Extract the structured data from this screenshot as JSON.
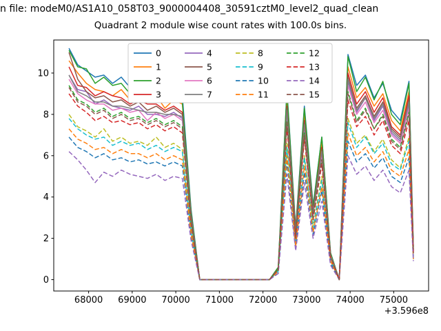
{
  "figure": {
    "suptitle": "n file: modeM0/AS1A10_058T03_9000004408_30591cztM0_level2_quad_clean",
    "title": "Quadrant 2 module wise count rates with 100.0s bins.",
    "x_offset_label": "+3.596e8"
  },
  "chart_data": {
    "type": "line",
    "title": "Quadrant 2 module wise count rates with 100.0s bins.",
    "xlabel": "",
    "ylabel": "",
    "x_axis_offset": "+3.596e8",
    "xlim": [
      67200,
      75800
    ],
    "ylim": [
      -0.55,
      11.6
    ],
    "x_ticks": [
      68000,
      69000,
      70000,
      71000,
      72000,
      73000,
      74000,
      75000
    ],
    "y_ticks": [
      0,
      2,
      4,
      6,
      8,
      10
    ],
    "grid": false,
    "legend_position": "upper center",
    "legend_columns": 4,
    "x": [
      67550,
      67750,
      67950,
      68150,
      68350,
      68550,
      68750,
      68950,
      69150,
      69350,
      69550,
      69750,
      69950,
      70150,
      70350,
      70550,
      70750,
      70950,
      71150,
      71350,
      71550,
      71750,
      71950,
      72150,
      72350,
      72550,
      72750,
      72950,
      73150,
      73350,
      73550,
      73750,
      73950,
      74150,
      74350,
      74550,
      74750,
      74950,
      75150,
      75350,
      75450
    ],
    "series": [
      {
        "name": "0",
        "color": "#1f77b4",
        "linestyle": "solid",
        "values": [
          11.2,
          10.4,
          10.1,
          9.8,
          9.9,
          9.5,
          9.8,
          9.3,
          9.5,
          9.1,
          9.4,
          9.0,
          9.2,
          8.9,
          3.4,
          0,
          0,
          0,
          0,
          0,
          0,
          0,
          0,
          0,
          0.6,
          9.2,
          2.5,
          8.4,
          3.6,
          6.9,
          1.3,
          0,
          10.9,
          9.4,
          9.9,
          8.8,
          9.5,
          8.2,
          7.7,
          9.6,
          1.6
        ]
      },
      {
        "name": "1",
        "color": "#ff7f0e",
        "linestyle": "solid",
        "values": [
          10.6,
          10.0,
          9.5,
          9.2,
          9.1,
          8.9,
          9.2,
          8.7,
          9.1,
          8.6,
          8.9,
          8.3,
          8.7,
          8.5,
          3.2,
          0,
          0,
          0,
          0,
          0,
          0,
          0,
          0,
          0,
          0.5,
          8.7,
          2.3,
          8.0,
          3.4,
          6.6,
          1.2,
          0,
          10.3,
          8.8,
          9.3,
          8.4,
          9.0,
          7.7,
          7.2,
          9.1,
          1.5
        ]
      },
      {
        "name": "2",
        "color": "#2ca02c",
        "linestyle": "solid",
        "values": [
          11.1,
          10.3,
          10.2,
          9.5,
          9.8,
          9.4,
          9.5,
          9.0,
          9.3,
          9.1,
          9.2,
          8.9,
          9.1,
          8.6,
          3.3,
          0,
          0,
          0,
          0,
          0,
          0,
          0,
          0,
          0,
          0.6,
          9.1,
          2.4,
          8.3,
          3.5,
          6.9,
          1.3,
          0,
          10.8,
          9.1,
          9.8,
          8.7,
          9.6,
          8.0,
          7.5,
          9.5,
          1.6
        ]
      },
      {
        "name": "3",
        "color": "#d62728",
        "linestyle": "solid",
        "values": [
          10.3,
          9.4,
          9.3,
          8.9,
          9.1,
          8.9,
          8.8,
          8.5,
          8.7,
          8.5,
          8.5,
          8.2,
          8.4,
          8.1,
          3.1,
          0,
          0,
          0,
          0,
          0,
          0,
          0,
          0,
          0,
          0.5,
          8.4,
          2.3,
          7.7,
          3.3,
          6.4,
          1.2,
          0,
          10.0,
          8.5,
          9.1,
          8.1,
          8.8,
          7.4,
          7.0,
          8.9,
          1.4
        ]
      },
      {
        "name": "4",
        "color": "#9467bd",
        "linestyle": "solid",
        "values": [
          9.9,
          9.2,
          9.1,
          8.5,
          8.7,
          8.4,
          8.3,
          8.2,
          8.4,
          8.0,
          8.0,
          7.9,
          8.1,
          7.8,
          3.0,
          0,
          0,
          0,
          0,
          0,
          0,
          0,
          0,
          0,
          0.5,
          8.1,
          2.2,
          7.4,
          3.2,
          6.1,
          1.1,
          0,
          9.6,
          8.1,
          8.8,
          7.7,
          8.4,
          7.1,
          6.7,
          8.5,
          1.4
        ]
      },
      {
        "name": "5",
        "color": "#8c564b",
        "linestyle": "solid",
        "values": [
          11.0,
          9.7,
          9.1,
          8.8,
          8.9,
          8.6,
          8.7,
          8.4,
          8.6,
          8.2,
          8.4,
          8.1,
          8.3,
          8.0,
          3.0,
          0,
          0,
          0,
          0,
          0,
          0,
          0,
          0,
          0,
          0.5,
          8.3,
          2.2,
          7.6,
          3.2,
          6.3,
          1.2,
          0,
          9.8,
          8.3,
          8.9,
          7.9,
          8.6,
          7.3,
          6.9,
          8.7,
          1.4
        ]
      },
      {
        "name": "6",
        "color": "#e377c2",
        "linestyle": "solid",
        "values": [
          9.7,
          9.0,
          8.7,
          8.5,
          8.5,
          8.2,
          8.3,
          8.1,
          8.2,
          7.7,
          8.1,
          7.8,
          8.0,
          7.7,
          2.9,
          0,
          0,
          0,
          0,
          0,
          0,
          0,
          0,
          0,
          0.5,
          8.0,
          2.1,
          7.3,
          3.1,
          6.0,
          1.1,
          0,
          9.4,
          8.0,
          8.6,
          7.6,
          8.2,
          7.0,
          6.6,
          8.3,
          1.4
        ]
      },
      {
        "name": "7",
        "color": "#7f7f7f",
        "linestyle": "solid",
        "values": [
          9.9,
          9.1,
          8.9,
          8.6,
          8.6,
          8.4,
          8.4,
          8.3,
          8.2,
          8.1,
          8.1,
          8.0,
          8.0,
          7.9,
          3.0,
          0,
          0,
          0,
          0,
          0,
          0,
          0,
          0,
          0,
          0.5,
          8.2,
          2.2,
          7.5,
          3.2,
          6.2,
          1.2,
          0,
          9.7,
          8.2,
          8.8,
          7.8,
          8.5,
          7.2,
          6.8,
          8.6,
          1.4
        ]
      },
      {
        "name": "8",
        "color": "#bcbd22",
        "linestyle": "dashed",
        "values": [
          8.0,
          7.4,
          7.2,
          6.9,
          7.3,
          6.7,
          6.9,
          6.6,
          6.7,
          6.5,
          6.9,
          6.4,
          6.6,
          6.3,
          2.4,
          0,
          0,
          0,
          0,
          0,
          0,
          0,
          0,
          0,
          0.4,
          6.6,
          1.8,
          6.0,
          2.6,
          5.0,
          1.0,
          0,
          7.8,
          6.6,
          7.0,
          6.2,
          6.8,
          5.8,
          5.4,
          6.9,
          1.1
        ]
      },
      {
        "name": "9",
        "color": "#17becf",
        "linestyle": "dashed",
        "values": [
          7.8,
          7.3,
          7.0,
          6.8,
          6.9,
          6.5,
          6.7,
          6.5,
          6.6,
          6.3,
          6.5,
          6.2,
          6.4,
          6.2,
          2.3,
          0,
          0,
          0,
          0,
          0,
          0,
          0,
          0,
          0,
          0.4,
          6.4,
          1.7,
          5.9,
          2.5,
          4.8,
          0.9,
          0,
          7.6,
          6.4,
          6.9,
          6.1,
          6.6,
          5.6,
          5.3,
          6.7,
          1.1
        ]
      },
      {
        "name": "10",
        "color": "#1f77b4",
        "linestyle": "dashed",
        "values": [
          6.9,
          6.4,
          6.2,
          5.9,
          6.1,
          5.8,
          5.9,
          5.7,
          5.8,
          5.6,
          5.7,
          5.5,
          5.7,
          5.5,
          2.1,
          0,
          0,
          0,
          0,
          0,
          0,
          0,
          0,
          0,
          0.3,
          5.7,
          1.5,
          5.2,
          2.2,
          4.3,
          0.8,
          0,
          6.7,
          5.7,
          6.1,
          5.4,
          5.9,
          5.0,
          4.7,
          5.9,
          1.0
        ]
      },
      {
        "name": "11",
        "color": "#ff7f0e",
        "linestyle": "dashed",
        "values": [
          7.3,
          6.8,
          6.6,
          6.3,
          6.4,
          6.1,
          6.3,
          6.1,
          6.1,
          5.9,
          6.1,
          5.8,
          6.0,
          5.8,
          2.2,
          0,
          0,
          0,
          0,
          0,
          0,
          0,
          0,
          0,
          0.4,
          6.0,
          1.6,
          5.5,
          2.3,
          4.5,
          0.9,
          0,
          7.1,
          6.0,
          6.4,
          5.7,
          6.2,
          5.3,
          5.0,
          6.3,
          1.0
        ]
      },
      {
        "name": "12",
        "color": "#2ca02c",
        "linestyle": "dashed",
        "values": [
          9.4,
          8.7,
          8.5,
          8.1,
          8.3,
          7.9,
          8.1,
          7.8,
          7.9,
          7.6,
          7.8,
          7.5,
          7.7,
          7.4,
          2.8,
          0,
          0,
          0,
          0,
          0,
          0,
          0,
          0,
          0,
          0.5,
          7.7,
          2.1,
          7.1,
          3.0,
          5.8,
          1.1,
          0,
          9.1,
          7.7,
          8.3,
          7.3,
          8.0,
          6.8,
          6.4,
          8.1,
          1.3
        ]
      },
      {
        "name": "13",
        "color": "#d62728",
        "linestyle": "dashed",
        "values": [
          9.0,
          8.4,
          8.1,
          7.7,
          7.9,
          7.6,
          7.7,
          7.5,
          7.6,
          7.3,
          7.5,
          7.2,
          7.4,
          7.1,
          2.7,
          0,
          0,
          0,
          0,
          0,
          0,
          0,
          0,
          0,
          0.5,
          7.4,
          2.0,
          6.8,
          2.9,
          5.6,
          1.1,
          0,
          8.7,
          7.4,
          7.9,
          7.0,
          7.7,
          6.5,
          6.1,
          7.7,
          1.3
        ]
      },
      {
        "name": "14",
        "color": "#9467bd",
        "linestyle": "dashed",
        "values": [
          6.2,
          5.8,
          5.3,
          4.7,
          5.2,
          5.0,
          5.3,
          5.1,
          5.0,
          4.9,
          5.1,
          4.8,
          5.0,
          4.9,
          1.9,
          0,
          0,
          0,
          0,
          0,
          0,
          0,
          0,
          0,
          0.3,
          5.1,
          1.4,
          4.7,
          2.0,
          3.8,
          0.7,
          0,
          6.0,
          5.1,
          5.5,
          4.8,
          5.3,
          4.5,
          4.2,
          5.3,
          0.9
        ]
      },
      {
        "name": "15",
        "color": "#8c564b",
        "linestyle": "dashed",
        "values": [
          9.3,
          8.6,
          8.4,
          8.0,
          8.2,
          7.8,
          8.0,
          7.7,
          7.8,
          7.5,
          7.7,
          7.4,
          7.6,
          7.3,
          2.8,
          0,
          0,
          0,
          0,
          0,
          0,
          0,
          0,
          0,
          0.5,
          7.6,
          2.0,
          7.0,
          3.0,
          5.8,
          1.1,
          0,
          9.0,
          7.6,
          8.2,
          7.3,
          7.9,
          6.7,
          6.3,
          8.0,
          1.3
        ]
      }
    ]
  }
}
